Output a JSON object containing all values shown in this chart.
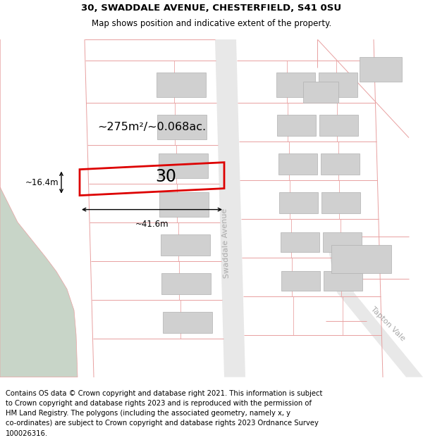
{
  "title_line1": "30, SWADDALE AVENUE, CHESTERFIELD, S41 0SU",
  "title_line2": "Map shows position and indicative extent of the property.",
  "footer_text": "Contains OS data © Crown copyright and database right 2021. This information is subject to Crown copyright and database rights 2023 and is reproduced with the permission of HM Land Registry. The polygons (including the associated geometry, namely x, y co-ordinates) are subject to Crown copyright and database rights 2023 Ordnance Survey 100026316.",
  "area_label": "~275m²/~0.068ac.",
  "number_label": "30",
  "width_label": "~41.6m",
  "height_label": "~16.4m",
  "road_label1": "Swaddale Avenue",
  "road_label2": "Tapton Vale",
  "map_bg": "#ffffff",
  "green_area_color": "#c8d5c8",
  "plot_outline_color": "#dd0000",
  "building_fill": "#d0d0d0",
  "land_line_color": "#e8a0a0",
  "title_fontsize": 9.5,
  "subtitle_fontsize": 8.5,
  "footer_fontsize": 7.2
}
